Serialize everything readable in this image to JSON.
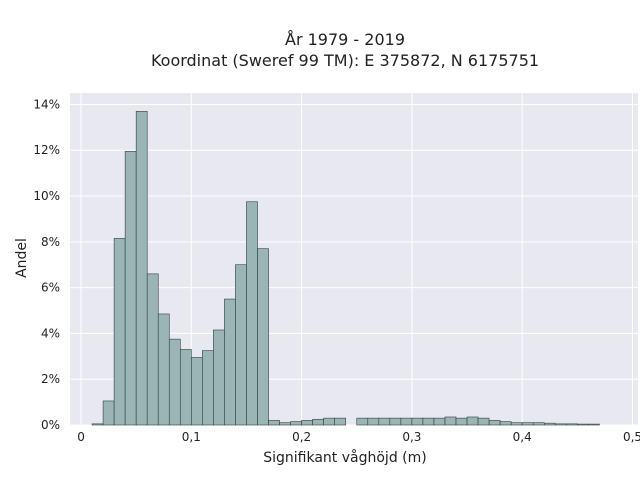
{
  "colors": {
    "bar_fill": "#9bb5b4",
    "bar_stroke": "#2f3f3c",
    "plot_bg": "#e8e8f0",
    "grid": "#ffffff"
  },
  "chart_data": {
    "type": "bar",
    "title_line1": "År 1979 - 2019",
    "title_line2": "Koordinat (Sweref 99 TM): E 375872, N 6175751",
    "xlabel": "Signifikant våghöjd (m)",
    "ylabel": "Andel",
    "xlim": [
      -0.01,
      0.505
    ],
    "ylim": [
      0,
      14.5
    ],
    "x_ticks": [
      0,
      0.1,
      0.2,
      0.3,
      0.4,
      0.5
    ],
    "x_tick_labels": [
      "0",
      "0,1",
      "0,2",
      "0,3",
      "0,4",
      "0,5"
    ],
    "y_ticks": [
      0,
      2,
      4,
      6,
      8,
      10,
      12,
      14
    ],
    "y_tick_labels": [
      "0%",
      "2%",
      "4%",
      "6%",
      "8%",
      "10%",
      "12%",
      "14%"
    ],
    "bin_width": 0.01,
    "bin_left_edges": [
      0.01,
      0.02,
      0.03,
      0.04,
      0.05,
      0.06,
      0.07,
      0.08,
      0.09,
      0.1,
      0.11,
      0.12,
      0.13,
      0.14,
      0.15,
      0.16,
      0.17,
      0.18,
      0.19,
      0.2,
      0.21,
      0.22,
      0.23,
      0.24,
      0.25,
      0.26,
      0.27,
      0.28,
      0.29,
      0.3,
      0.31,
      0.32,
      0.33,
      0.34,
      0.35,
      0.36,
      0.37,
      0.38,
      0.39,
      0.4,
      0.41,
      0.42,
      0.43,
      0.44,
      0.45,
      0.46
    ],
    "values": [
      0.05,
      1.05,
      8.15,
      11.95,
      13.7,
      6.6,
      4.85,
      3.75,
      3.3,
      2.95,
      3.25,
      4.15,
      5.5,
      7.0,
      9.75,
      7.7,
      0.2,
      0.1,
      0.15,
      0.2,
      0.25,
      0.3,
      0.3,
      0.0,
      0.3,
      0.3,
      0.3,
      0.3,
      0.3,
      0.3,
      0.3,
      0.3,
      0.35,
      0.3,
      0.35,
      0.3,
      0.2,
      0.15,
      0.1,
      0.1,
      0.1,
      0.08,
      0.05,
      0.05,
      0.04,
      0.04
    ],
    "grid": true,
    "legend": "none"
  }
}
